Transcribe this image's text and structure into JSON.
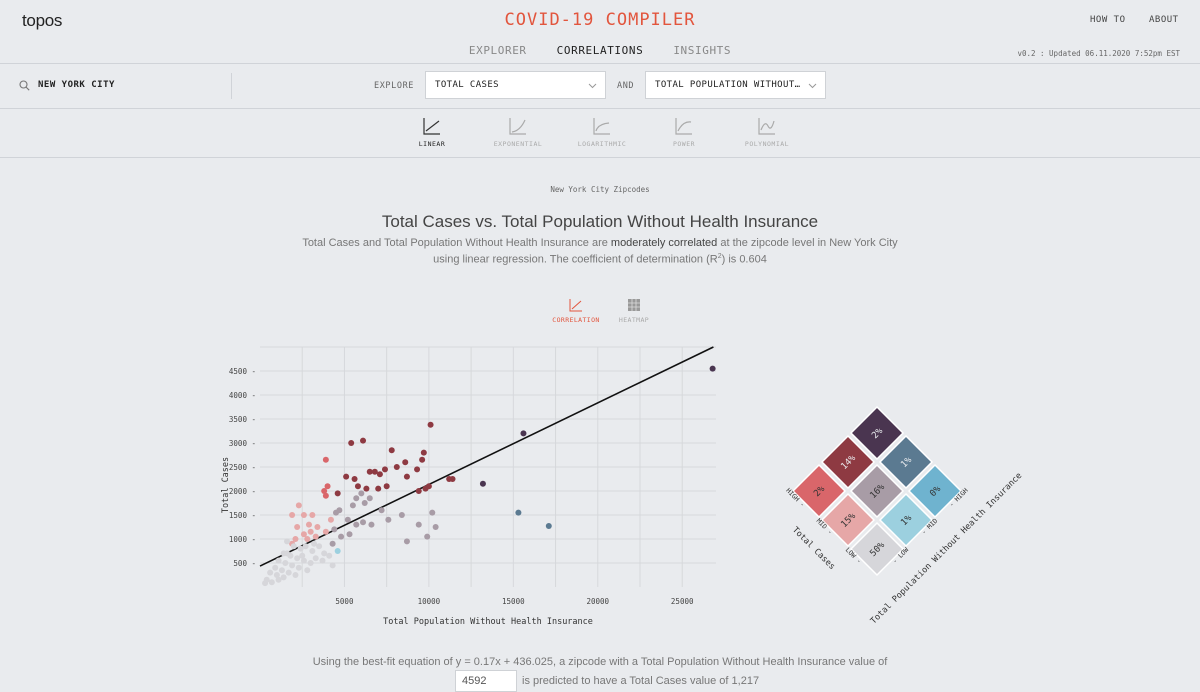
{
  "header": {
    "logo": "topos",
    "title": "COVID-19 COMPILER",
    "how_to": "HOW TO",
    "about": "ABOUT",
    "version": "v0.2 : Updated 06.11.2020 7:52pm EST",
    "tabs": [
      {
        "label": "EXPLORER",
        "active": false
      },
      {
        "label": "CORRELATIONS",
        "active": true
      },
      {
        "label": "INSIGHTS",
        "active": false
      }
    ]
  },
  "controls": {
    "location": "NEW YORK CITY",
    "explore_label": "EXPLORE",
    "and_label": "AND",
    "variable_x_select": "TOTAL CASES",
    "variable_y_select": "TOTAL POPULATION WITHOUT…"
  },
  "models": [
    {
      "label": "LINEAR",
      "active": true
    },
    {
      "label": "EXPONENTIAL",
      "active": false
    },
    {
      "label": "LOGARITHMIC",
      "active": false
    },
    {
      "label": "POWER",
      "active": false
    },
    {
      "label": "POLYNOMIAL",
      "active": false
    }
  ],
  "content": {
    "subtitle": "New York City Zipcodes",
    "title": "Total Cases vs. Total Population Without Health Insurance",
    "desc_part1": "Total Cases and Total Population Without Health Insurance are ",
    "desc_strong": "moderately correlated",
    "desc_part2": " at the zipcode level in New York City using linear regression. The coefficient of determination (R",
    "desc_sup": "2",
    "desc_part3": ") is 0.604",
    "view_tabs": [
      {
        "label": "CORRELATION",
        "active": true
      },
      {
        "label": "HEATMAP",
        "active": false
      }
    ],
    "bottom_text": "Using the best-fit equation of y = 0.17x + 436.025, a zipcode with a Total Population Without Health Insurance value of",
    "predict_value": "4592",
    "predict_text": "is predicted to have a Total Cases value of 1,217"
  },
  "colors": {
    "accent": "#e2553d",
    "very_high": "#4a3550",
    "high_red": "#8e3a42",
    "mid_red": "#d9666a",
    "mid_grey": "#a89ca6",
    "low_pink": "#e6a7a7",
    "low_grey": "#d6d6da",
    "mid_blue": "#5b7a91",
    "light_blue": "#9cd0df"
  },
  "chart_data": {
    "type": "scatter",
    "title": "",
    "xlabel": "Total Population Without Health Insurance",
    "ylabel": "Total Cases",
    "xlim": [
      0,
      27000
    ],
    "ylim": [
      0,
      5000
    ],
    "xticks": [
      5000,
      10000,
      15000,
      20000,
      25000
    ],
    "yticks": [
      500,
      1000,
      1500,
      2000,
      2500,
      3000,
      3500,
      4000,
      4500
    ],
    "regression": {
      "slope": 0.17,
      "intercept": 436.025
    },
    "points": [
      {
        "x": 26800,
        "y": 4550,
        "c": "#4a3550"
      },
      {
        "x": 15600,
        "y": 3200,
        "c": "#4a3550"
      },
      {
        "x": 13200,
        "y": 2150,
        "c": "#4a3550"
      },
      {
        "x": 15300,
        "y": 1550,
        "c": "#5b7a91"
      },
      {
        "x": 17100,
        "y": 1270,
        "c": "#5b7a91"
      },
      {
        "x": 10100,
        "y": 3380,
        "c": "#8e3a42"
      },
      {
        "x": 6100,
        "y": 3050,
        "c": "#8e3a42"
      },
      {
        "x": 5400,
        "y": 3000,
        "c": "#8e3a42"
      },
      {
        "x": 7800,
        "y": 2850,
        "c": "#8e3a42"
      },
      {
        "x": 9700,
        "y": 2800,
        "c": "#8e3a42"
      },
      {
        "x": 8600,
        "y": 2600,
        "c": "#8e3a42"
      },
      {
        "x": 9600,
        "y": 2650,
        "c": "#8e3a42"
      },
      {
        "x": 7400,
        "y": 2450,
        "c": "#8e3a42"
      },
      {
        "x": 8100,
        "y": 2500,
        "c": "#8e3a42"
      },
      {
        "x": 6500,
        "y": 2400,
        "c": "#8e3a42"
      },
      {
        "x": 6800,
        "y": 2400,
        "c": "#8e3a42"
      },
      {
        "x": 7100,
        "y": 2350,
        "c": "#8e3a42"
      },
      {
        "x": 5600,
        "y": 2250,
        "c": "#8e3a42"
      },
      {
        "x": 5800,
        "y": 2100,
        "c": "#8e3a42"
      },
      {
        "x": 6300,
        "y": 2050,
        "c": "#8e3a42"
      },
      {
        "x": 7000,
        "y": 2050,
        "c": "#8e3a42"
      },
      {
        "x": 7500,
        "y": 2100,
        "c": "#8e3a42"
      },
      {
        "x": 8700,
        "y": 2300,
        "c": "#8e3a42"
      },
      {
        "x": 9300,
        "y": 2450,
        "c": "#8e3a42"
      },
      {
        "x": 9800,
        "y": 2050,
        "c": "#8e3a42"
      },
      {
        "x": 10000,
        "y": 2100,
        "c": "#8e3a42"
      },
      {
        "x": 11200,
        "y": 2250,
        "c": "#8e3a42"
      },
      {
        "x": 11400,
        "y": 2250,
        "c": "#8e3a42"
      },
      {
        "x": 9400,
        "y": 2000,
        "c": "#8e3a42"
      },
      {
        "x": 5100,
        "y": 2300,
        "c": "#8e3a42"
      },
      {
        "x": 4600,
        "y": 1950,
        "c": "#8e3a42"
      },
      {
        "x": 3900,
        "y": 2650,
        "c": "#d9666a"
      },
      {
        "x": 4000,
        "y": 2100,
        "c": "#d9666a"
      },
      {
        "x": 3800,
        "y": 2000,
        "c": "#d9666a"
      },
      {
        "x": 3900,
        "y": 1900,
        "c": "#d9666a"
      },
      {
        "x": 2300,
        "y": 1700,
        "c": "#e6a7a7"
      },
      {
        "x": 1900,
        "y": 1500,
        "c": "#e6a7a7"
      },
      {
        "x": 2600,
        "y": 1500,
        "c": "#e6a7a7"
      },
      {
        "x": 3100,
        "y": 1500,
        "c": "#e6a7a7"
      },
      {
        "x": 2200,
        "y": 1250,
        "c": "#e6a7a7"
      },
      {
        "x": 2900,
        "y": 1300,
        "c": "#e6a7a7"
      },
      {
        "x": 3400,
        "y": 1250,
        "c": "#e6a7a7"
      },
      {
        "x": 4200,
        "y": 1400,
        "c": "#e6a7a7"
      },
      {
        "x": 2600,
        "y": 1100,
        "c": "#e6a7a7"
      },
      {
        "x": 3300,
        "y": 1050,
        "c": "#e6a7a7"
      },
      {
        "x": 3900,
        "y": 1150,
        "c": "#e6a7a7"
      },
      {
        "x": 2100,
        "y": 1000,
        "c": "#e6a7a7"
      },
      {
        "x": 2800,
        "y": 1000,
        "c": "#e6a7a7"
      },
      {
        "x": 3000,
        "y": 1150,
        "c": "#e6a7a7"
      },
      {
        "x": 1900,
        "y": 900,
        "c": "#e6a7a7"
      },
      {
        "x": 4600,
        "y": 750,
        "c": "#9cd0df"
      },
      {
        "x": 5700,
        "y": 1850,
        "c": "#a89ca6"
      },
      {
        "x": 6000,
        "y": 1950,
        "c": "#a89ca6"
      },
      {
        "x": 6500,
        "y": 1850,
        "c": "#a89ca6"
      },
      {
        "x": 6200,
        "y": 1750,
        "c": "#a89ca6"
      },
      {
        "x": 5500,
        "y": 1700,
        "c": "#a89ca6"
      },
      {
        "x": 4700,
        "y": 1600,
        "c": "#a89ca6"
      },
      {
        "x": 5200,
        "y": 1400,
        "c": "#a89ca6"
      },
      {
        "x": 6100,
        "y": 1350,
        "c": "#a89ca6"
      },
      {
        "x": 5700,
        "y": 1300,
        "c": "#a89ca6"
      },
      {
        "x": 6600,
        "y": 1300,
        "c": "#a89ca6"
      },
      {
        "x": 7200,
        "y": 1600,
        "c": "#a89ca6"
      },
      {
        "x": 7600,
        "y": 1400,
        "c": "#a89ca6"
      },
      {
        "x": 8400,
        "y": 1500,
        "c": "#a89ca6"
      },
      {
        "x": 9400,
        "y": 1300,
        "c": "#a89ca6"
      },
      {
        "x": 10200,
        "y": 1550,
        "c": "#a89ca6"
      },
      {
        "x": 10400,
        "y": 1250,
        "c": "#a89ca6"
      },
      {
        "x": 8700,
        "y": 950,
        "c": "#a89ca6"
      },
      {
        "x": 9900,
        "y": 1050,
        "c": "#a89ca6"
      },
      {
        "x": 4400,
        "y": 1200,
        "c": "#a89ca6"
      },
      {
        "x": 4800,
        "y": 1050,
        "c": "#a89ca6"
      },
      {
        "x": 4300,
        "y": 900,
        "c": "#a89ca6"
      },
      {
        "x": 5300,
        "y": 1100,
        "c": "#a89ca6"
      },
      {
        "x": 4500,
        "y": 1550,
        "c": "#a89ca6"
      },
      {
        "x": 1600,
        "y": 950,
        "c": "#d6d6da"
      },
      {
        "x": 2000,
        "y": 850,
        "c": "#d6d6da"
      },
      {
        "x": 2400,
        "y": 800,
        "c": "#d6d6da"
      },
      {
        "x": 2700,
        "y": 850,
        "c": "#d6d6da"
      },
      {
        "x": 3100,
        "y": 750,
        "c": "#d6d6da"
      },
      {
        "x": 3500,
        "y": 850,
        "c": "#d6d6da"
      },
      {
        "x": 3800,
        "y": 700,
        "c": "#d6d6da"
      },
      {
        "x": 4100,
        "y": 650,
        "c": "#d6d6da"
      },
      {
        "x": 1400,
        "y": 700,
        "c": "#d6d6da"
      },
      {
        "x": 1800,
        "y": 650,
        "c": "#d6d6da"
      },
      {
        "x": 2200,
        "y": 600,
        "c": "#d6d6da"
      },
      {
        "x": 2600,
        "y": 550,
        "c": "#d6d6da"
      },
      {
        "x": 3000,
        "y": 500,
        "c": "#d6d6da"
      },
      {
        "x": 3300,
        "y": 600,
        "c": "#d6d6da"
      },
      {
        "x": 3700,
        "y": 550,
        "c": "#d6d6da"
      },
      {
        "x": 1100,
        "y": 550,
        "c": "#d6d6da"
      },
      {
        "x": 1500,
        "y": 500,
        "c": "#d6d6da"
      },
      {
        "x": 1900,
        "y": 450,
        "c": "#d6d6da"
      },
      {
        "x": 2300,
        "y": 400,
        "c": "#d6d6da"
      },
      {
        "x": 2800,
        "y": 350,
        "c": "#d6d6da"
      },
      {
        "x": 900,
        "y": 400,
        "c": "#d6d6da"
      },
      {
        "x": 1300,
        "y": 350,
        "c": "#d6d6da"
      },
      {
        "x": 1700,
        "y": 300,
        "c": "#d6d6da"
      },
      {
        "x": 2100,
        "y": 250,
        "c": "#d6d6da"
      },
      {
        "x": 600,
        "y": 300,
        "c": "#d6d6da"
      },
      {
        "x": 1000,
        "y": 250,
        "c": "#d6d6da"
      },
      {
        "x": 1400,
        "y": 200,
        "c": "#d6d6da"
      },
      {
        "x": 400,
        "y": 150,
        "c": "#d6d6da"
      },
      {
        "x": 700,
        "y": 100,
        "c": "#d6d6da"
      },
      {
        "x": 1100,
        "y": 150,
        "c": "#d6d6da"
      },
      {
        "x": 300,
        "y": 80,
        "c": "#d6d6da"
      },
      {
        "x": 1600,
        "y": 700,
        "c": "#d6d6da"
      },
      {
        "x": 2500,
        "y": 650,
        "c": "#d6d6da"
      },
      {
        "x": 3200,
        "y": 900,
        "c": "#d6d6da"
      },
      {
        "x": 4300,
        "y": 450,
        "c": "#d6d6da"
      }
    ]
  },
  "matrix": {
    "row_axis_label": "Total Cases",
    "col_axis_label": "Total Population Without Health Insurance",
    "levels": [
      "HIGH",
      "MID",
      "LOW"
    ],
    "cells": [
      {
        "r": 0,
        "c": 0,
        "label": "2%",
        "color": "#4a3550",
        "text": "#e9ebee"
      },
      {
        "r": 0,
        "c": 1,
        "label": "14%",
        "color": "#8e3a42",
        "text": "#e9ebee"
      },
      {
        "r": 0,
        "c": 2,
        "label": "2%",
        "color": "#d9666a",
        "text": "#333"
      },
      {
        "r": 1,
        "c": 0,
        "label": "1%",
        "color": "#5b7a91",
        "text": "#e9ebee"
      },
      {
        "r": 1,
        "c": 1,
        "label": "16%",
        "color": "#a89ca6",
        "text": "#333"
      },
      {
        "r": 1,
        "c": 2,
        "label": "15%",
        "color": "#e6a7a7",
        "text": "#333"
      },
      {
        "r": 2,
        "c": 0,
        "label": "0%",
        "color": "#6fb3cf",
        "text": "#333"
      },
      {
        "r": 2,
        "c": 1,
        "label": "1%",
        "color": "#9cd0df",
        "text": "#333"
      },
      {
        "r": 2,
        "c": 2,
        "label": "50%",
        "color": "#d6d6da",
        "text": "#333"
      }
    ]
  }
}
